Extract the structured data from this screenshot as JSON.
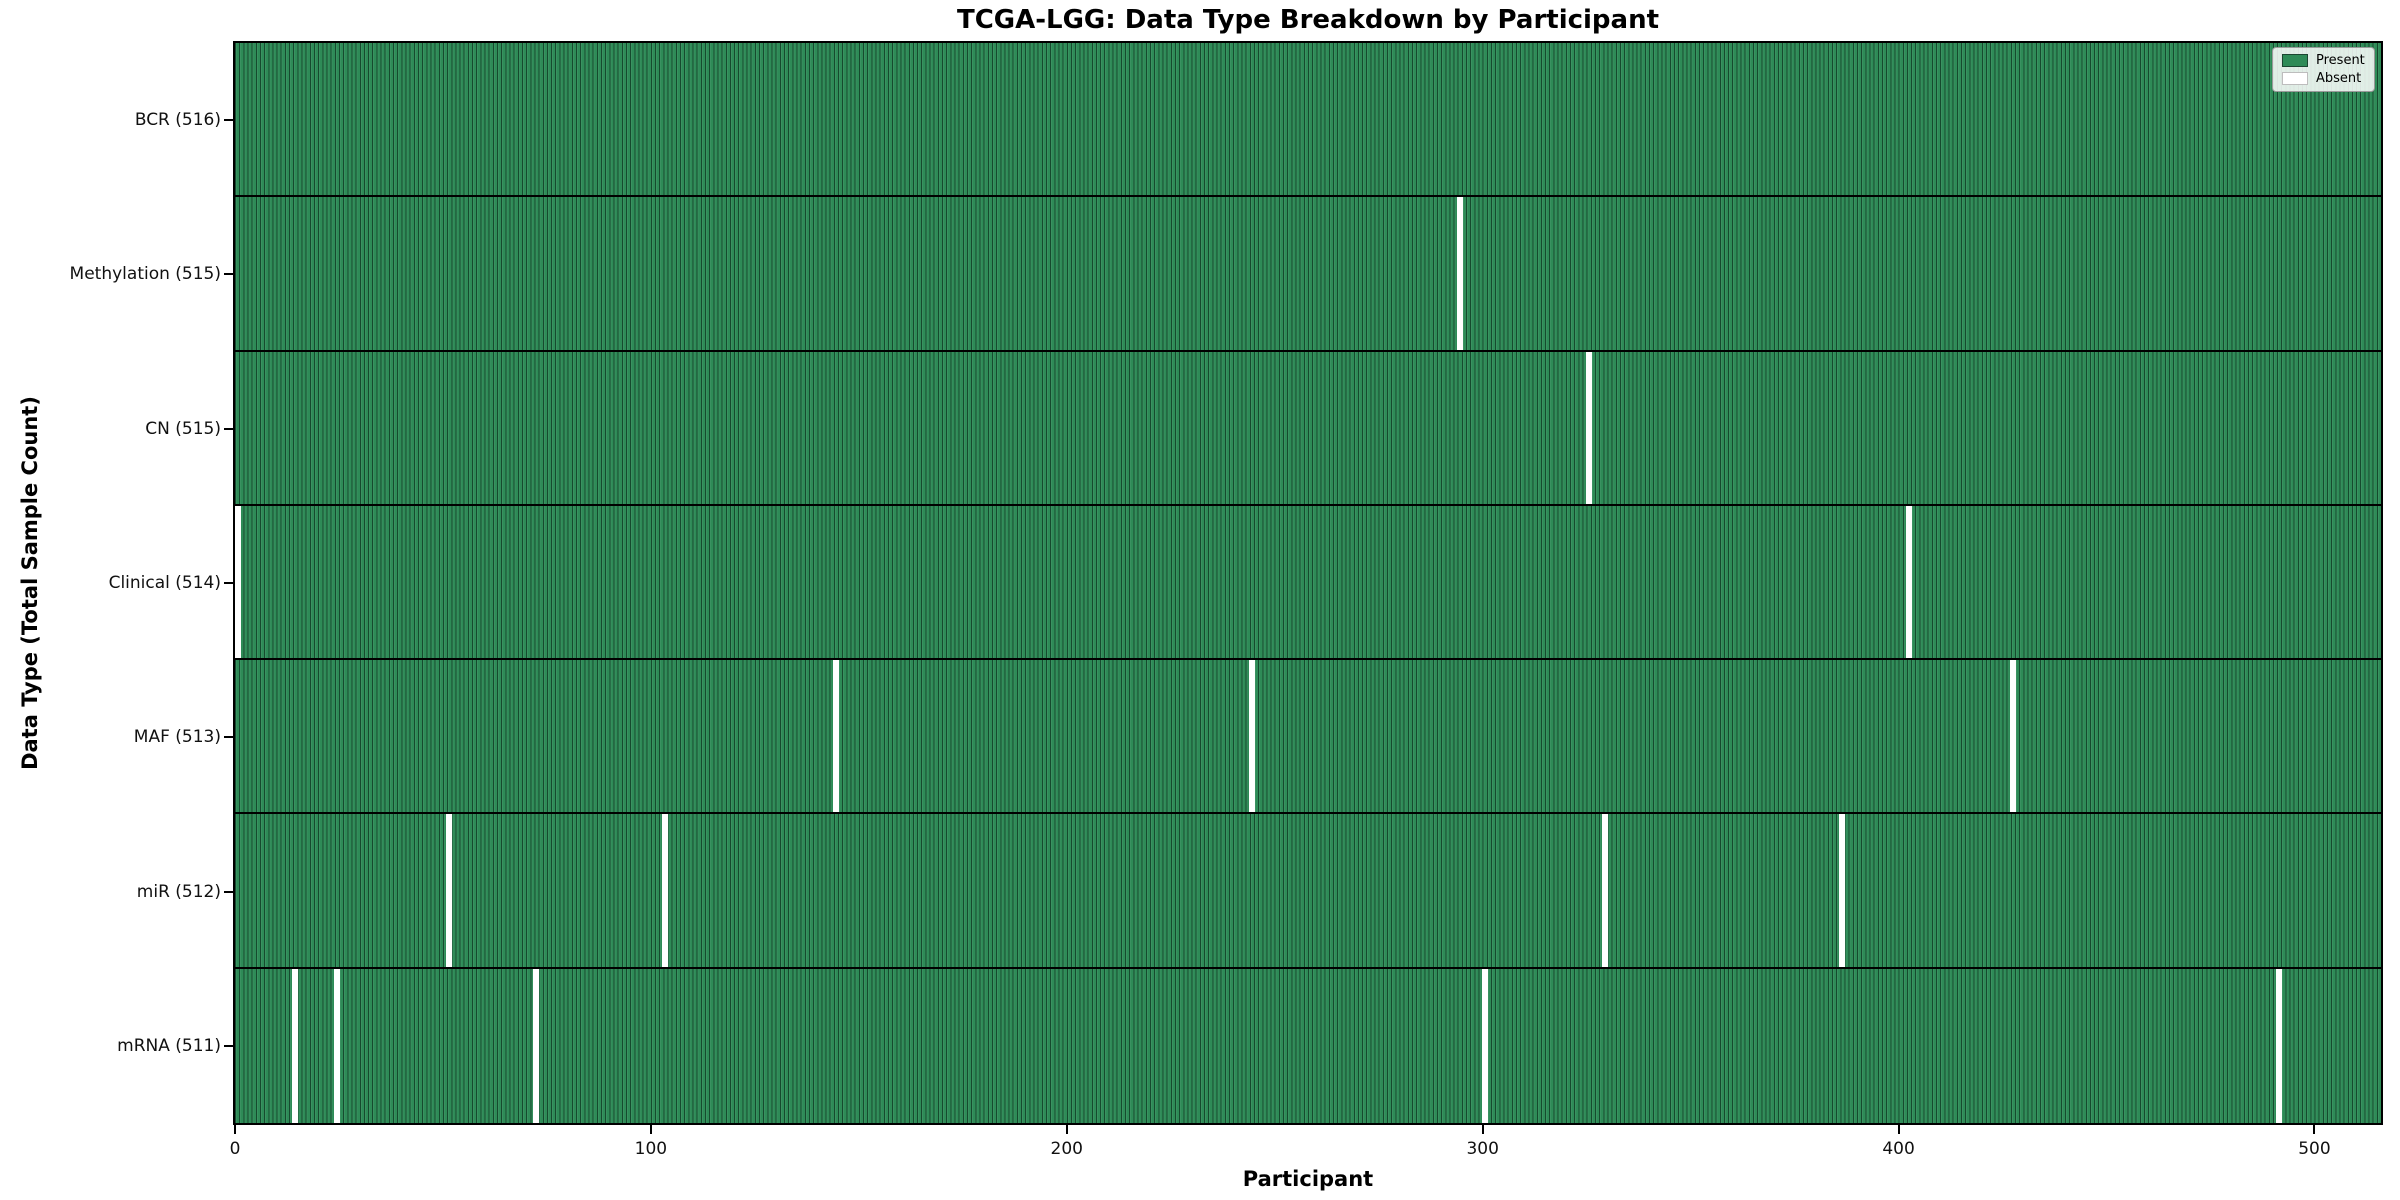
{
  "figure": {
    "background_color": "#ffffff"
  },
  "chart_data": {
    "type": "heatmap",
    "title": "TCGA-LGG: Data Type Breakdown by Participant",
    "xlabel": "Participant",
    "ylabel": "Data Type (Total Sample Count)",
    "xlim": [
      0,
      516
    ],
    "x_ticks": [
      0,
      100,
      200,
      300,
      400,
      500
    ],
    "n_participants": 516,
    "grid": false,
    "legend_position": "upper right",
    "legend": [
      {
        "label": "Present",
        "color": "#2e8b57"
      },
      {
        "label": "Absent",
        "color": "#ffffff"
      }
    ],
    "colors": {
      "present_fill": "#2e8b57",
      "bar_edge": "#14381f",
      "row_separator": "#000000",
      "absent_fill": "#ffffff"
    },
    "categories": [
      "BCR (516)",
      "Methylation (515)",
      "CN (515)",
      "Clinical (514)",
      "MAF (513)",
      "miR (512)",
      "mRNA (511)"
    ],
    "rows": [
      {
        "label": "BCR (516)",
        "data_type": "BCR",
        "present_count": 516,
        "absent_participants": []
      },
      {
        "label": "Methylation (515)",
        "data_type": "Methylation",
        "present_count": 515,
        "absent_participants": [
          294
        ]
      },
      {
        "label": "CN (515)",
        "data_type": "CN",
        "present_count": 515,
        "absent_participants": [
          325
        ]
      },
      {
        "label": "Clinical (514)",
        "data_type": "Clinical",
        "present_count": 514,
        "absent_participants": [
          0,
          402
        ]
      },
      {
        "label": "MAF (513)",
        "data_type": "MAF",
        "present_count": 513,
        "absent_participants": [
          144,
          244,
          427
        ]
      },
      {
        "label": "miR (512)",
        "data_type": "miR",
        "present_count": 512,
        "absent_participants": [
          51,
          103,
          329,
          386
        ]
      },
      {
        "label": "mRNA (511)",
        "data_type": "mRNA",
        "present_count": 511,
        "absent_participants": [
          14,
          24,
          72,
          300,
          491
        ]
      }
    ]
  }
}
